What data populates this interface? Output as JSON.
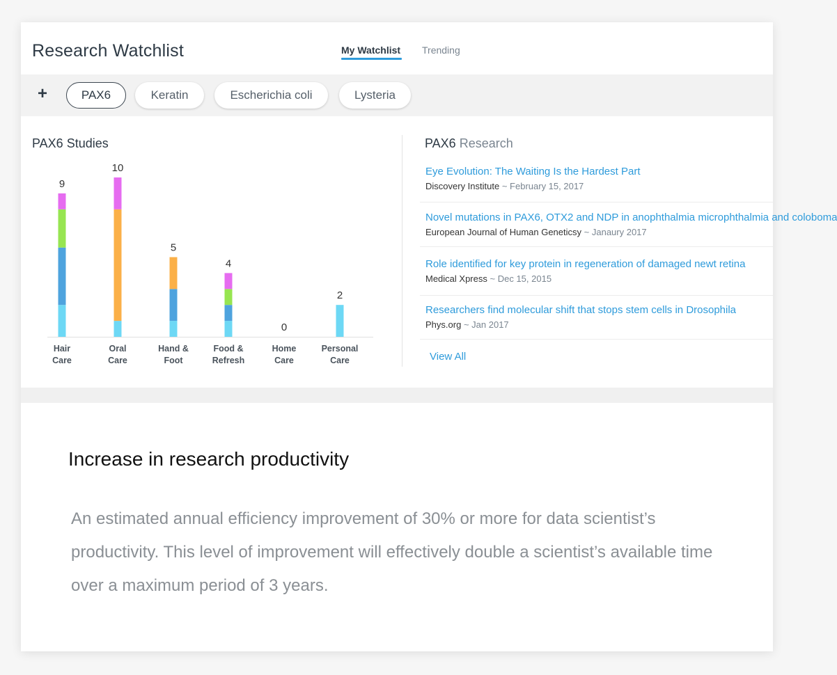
{
  "app": {
    "title": "Research Watchlist",
    "tabs": [
      {
        "label": "My Watchlist",
        "active": true
      },
      {
        "label": "Trending",
        "active": false
      }
    ]
  },
  "watchlist": {
    "add_label": "+",
    "chips": [
      {
        "label": "PAX6",
        "active": true
      },
      {
        "label": "Keratin",
        "active": false
      },
      {
        "label": "Escherichia coli",
        "active": false
      },
      {
        "label": "Lysteria",
        "active": false
      }
    ]
  },
  "studies": {
    "title_term": "PAX6",
    "title_suffix": "Studies"
  },
  "chart_data": {
    "type": "bar",
    "stacked": true,
    "categories": [
      "Hair Care",
      "Oral Care",
      "Hand & Foot",
      "Food & Refresh",
      "Home Care",
      "Personal Care"
    ],
    "category_lines": [
      [
        "Hair",
        "Care"
      ],
      [
        "Oral",
        "Care"
      ],
      [
        "Hand &",
        "Foot"
      ],
      [
        "Food &",
        "Refresh"
      ],
      [
        "Home",
        "Care"
      ],
      [
        "Personal",
        "Care"
      ]
    ],
    "totals": [
      9,
      10,
      5,
      4,
      0,
      2
    ],
    "series": [
      {
        "color": "#6dd8f5",
        "values": [
          2,
          1,
          1,
          1,
          0,
          2
        ]
      },
      {
        "color": "#4ea3de",
        "values": [
          3.6,
          0,
          2,
          1,
          0,
          0
        ]
      },
      {
        "color": "#97e551",
        "values": [
          2.4,
          0,
          0,
          1,
          0,
          0
        ]
      },
      {
        "color": "#fbb048",
        "values": [
          0,
          7,
          2,
          0,
          0,
          0
        ]
      },
      {
        "color": "#e66cf0",
        "values": [
          1,
          2,
          0,
          1,
          0,
          0
        ]
      }
    ],
    "ylim": [
      0,
      10
    ],
    "grid": false,
    "legend": "none"
  },
  "research": {
    "title_term": "PAX6",
    "title_suffix": "Research",
    "articles": [
      {
        "title": "Eye Evolution: The Waiting Is the Hardest Part",
        "source": "Discovery Institute",
        "date": "February 15, 2017"
      },
      {
        "title": "Novel mutations in PAX6, OTX2 and NDP in anophthalmia microphthalmia and coloboma",
        "source": "European Journal of Human Geneticsy",
        "date": "Janaury 2017"
      },
      {
        "title": "Role identified for key protein in regeneration of damaged newt retina",
        "source": "Medical Xpress",
        "date": "Dec 15, 2015"
      },
      {
        "title": "Researchers find molecular shift that stops stem cells in Drosophila",
        "source": "Phys.org",
        "date": "Jan 2017"
      }
    ],
    "meta_separator": "~",
    "view_all_label": "View All"
  },
  "promo": {
    "title": "Increase in research productivity",
    "body": "An estimated annual efficiency improvement of 30% or more for data scientist’s productivity. This level of improvement will effectively double a scientist’s available time over a maximum period of 3 years."
  }
}
